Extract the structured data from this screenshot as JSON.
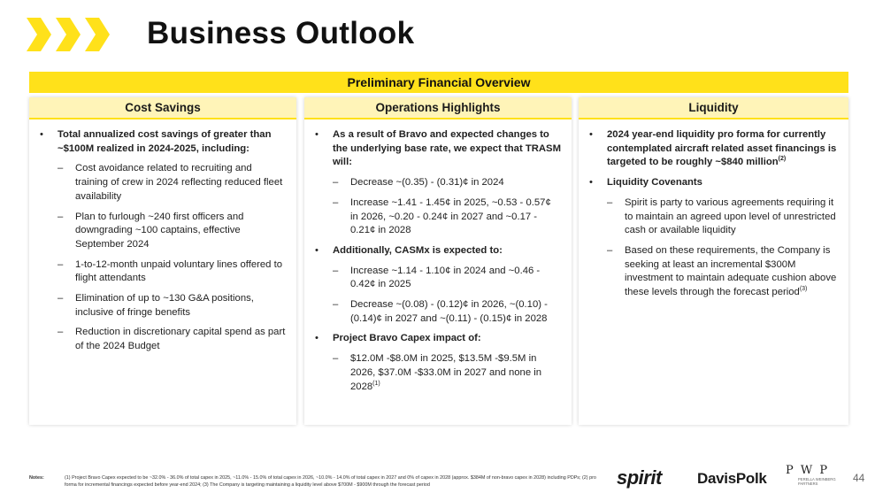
{
  "title": "Business Outlook",
  "banner": "Preliminary Financial Overview",
  "colors": {
    "accent_yellow": "#ffe11a",
    "header_bg": "#fff4b8"
  },
  "columns": [
    {
      "header": "Cost Savings",
      "items": [
        {
          "marker": "•",
          "text": "Total annualized cost savings of greater than ~$100M realized in 2024-2025, including:"
        },
        {
          "marker": "–",
          "text": "Cost avoidance related to recruiting and training of crew in 2024 reflecting reduced fleet availability"
        },
        {
          "marker": "–",
          "text": "Plan to furlough ~240 first officers and downgrading ~100 captains, effective September 2024"
        },
        {
          "marker": "–",
          "text": "1-to-12-month unpaid voluntary lines offered to flight attendants"
        },
        {
          "marker": "–",
          "text": "Elimination of up to ~130 G&A positions, inclusive of fringe benefits"
        },
        {
          "marker": "–",
          "text": "Reduction in discretionary capital spend as part of the 2024 Budget"
        }
      ]
    },
    {
      "header": "Operations Highlights",
      "items": [
        {
          "marker": "•",
          "text": "As a result of Bravo and expected changes to the underlying base rate, we expect that TRASM will:"
        },
        {
          "marker": "–",
          "text": "Decrease ~(0.35) - (0.31)¢ in 2024"
        },
        {
          "marker": "–",
          "text": "Increase ~1.41 - 1.45¢ in 2025, ~0.53 - 0.57¢ in 2026, ~0.20 - 0.24¢ in 2027 and ~0.17 - 0.21¢ in 2028"
        },
        {
          "marker": "•",
          "text": "Additionally, CASMx is expected to:"
        },
        {
          "marker": "–",
          "text": "Increase ~1.14 - 1.10¢ in 2024 and ~0.46 - 0.42¢ in 2025"
        },
        {
          "marker": "–",
          "text": "Decrease ~(0.08) - (0.12)¢ in 2026, ~(0.10) - (0.14)¢ in 2027 and ~(0.11) - (0.15)¢  in 2028"
        },
        {
          "marker": "•",
          "text": "Project Bravo Capex impact of:"
        },
        {
          "marker": "–",
          "text": "$12.0M -$8.0M in 2025, $13.5M -$9.5M in 2026, $37.0M -$33.0M in 2027 and none in 2028",
          "sup": "(1)"
        }
      ]
    },
    {
      "header": "Liquidity",
      "items": [
        {
          "marker": "•",
          "text": "2024 year-end liquidity pro forma for currently contemplated aircraft related asset financings is targeted to be roughly ~$840 million",
          "sup": "(2)"
        },
        {
          "marker": "•",
          "text": "Liquidity Covenants"
        },
        {
          "marker": "–",
          "text": "Spirit is party to various agreements requiring it to maintain an agreed upon level of unrestricted cash or available liquidity"
        },
        {
          "marker": "–",
          "text": "Based on these requirements, the Company is seeking at least an incremental $300M investment to maintain adequate cushion above these levels through the forecast period",
          "sup": "(3)"
        }
      ]
    }
  ],
  "notes": {
    "label": "Notes:",
    "text": "(1) Project Bravo Capex expected to be ~32.0% - 36.0% of total capex in 2025, ~11.0% - 15.0% of total capex in 2026, ~10.0% - 14.0% of total capex in 2027 and 0% of capex in 2028 (approx. $384M of non-bravo capex in 2028) including PDPs; (2) pro forma for incremental financings expected before year-end 2024; (3) The Company is targeting maintaining a liquidity level above $700M - $900M through the forecast period"
  },
  "footer": {
    "spirit_logo": "spirit",
    "davispolk_logo": "DavisPolk",
    "pwp_logo": "P W P",
    "pwp_sub": "PERELLA WEINBERG PARTNERS",
    "page_number": "44"
  }
}
